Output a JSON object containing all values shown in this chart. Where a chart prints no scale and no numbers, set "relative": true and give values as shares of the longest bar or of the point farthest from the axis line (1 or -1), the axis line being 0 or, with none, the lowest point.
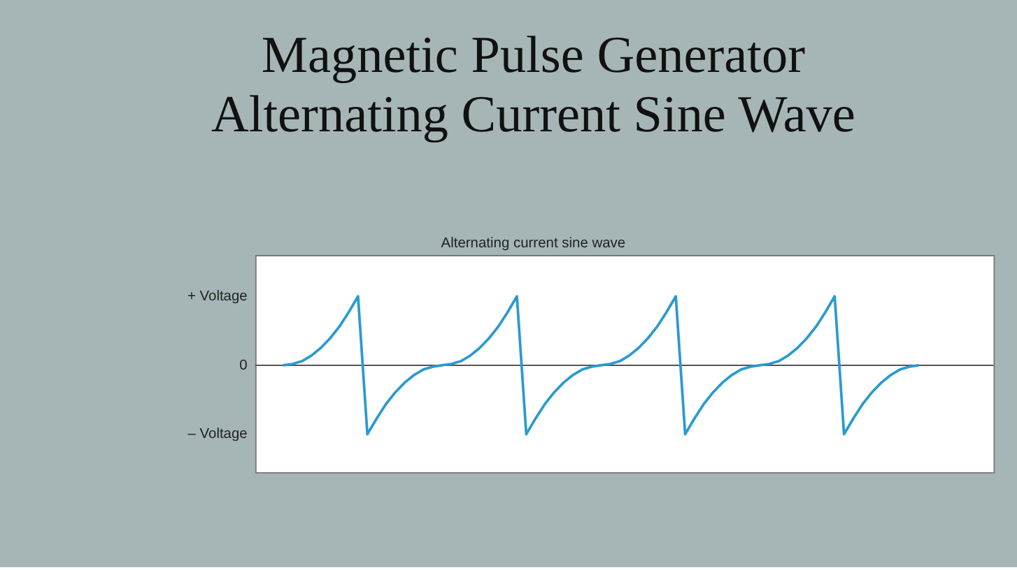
{
  "chart_data": {
    "type": "line",
    "title": "Magnetic Pulse Generator\nAlternating Current Sine Wave",
    "subtitle": "Alternating current sine wave",
    "relative": true,
    "categories": [
      null,
      null,
      null,
      null,
      null,
      null,
      null,
      null,
      null,
      null,
      null,
      null,
      null,
      null,
      null,
      null,
      null,
      null,
      null,
      null,
      null,
      null,
      null,
      null,
      null,
      null,
      null,
      null,
      null,
      null,
      null,
      null,
      null,
      null,
      null,
      null,
      null,
      null,
      null,
      null,
      null,
      null,
      null,
      null,
      null,
      null,
      null,
      null,
      null,
      null,
      null,
      null,
      null,
      null,
      null,
      null,
      null,
      null,
      null,
      null,
      null,
      null,
      null,
      null,
      null,
      null,
      null,
      null,
      null
    ],
    "series": [
      {
        "color": "#2a9ad0",
        "values": [
          0,
          0.02,
          0.06,
          0.14,
          0.25,
          0.39,
          0.56,
          0.77,
          1,
          -1,
          -0.77,
          -0.56,
          -0.39,
          -0.25,
          -0.14,
          -0.06,
          -0.02,
          0,
          0.02,
          0.06,
          0.14,
          0.25,
          0.39,
          0.56,
          0.77,
          1,
          -1,
          -0.77,
          -0.56,
          -0.39,
          -0.25,
          -0.14,
          -0.06,
          -0.02,
          0,
          0.02,
          0.06,
          0.14,
          0.25,
          0.39,
          0.56,
          0.77,
          1,
          -1,
          -0.77,
          -0.56,
          -0.39,
          -0.25,
          -0.14,
          -0.06,
          -0.02,
          0,
          0.02,
          0.06,
          0.14,
          0.25,
          0.39,
          0.56,
          0.77,
          1,
          -1,
          -0.77,
          -0.56,
          -0.39,
          -0.25,
          -0.14,
          -0.06,
          -0.02,
          0
        ]
      }
    ],
    "annotations": [
      "+ Voltage",
      "0",
      "– Voltage"
    ],
    "tick_labels": false,
    "grid": false,
    "line_style": "solid",
    "marker": "none"
  }
}
